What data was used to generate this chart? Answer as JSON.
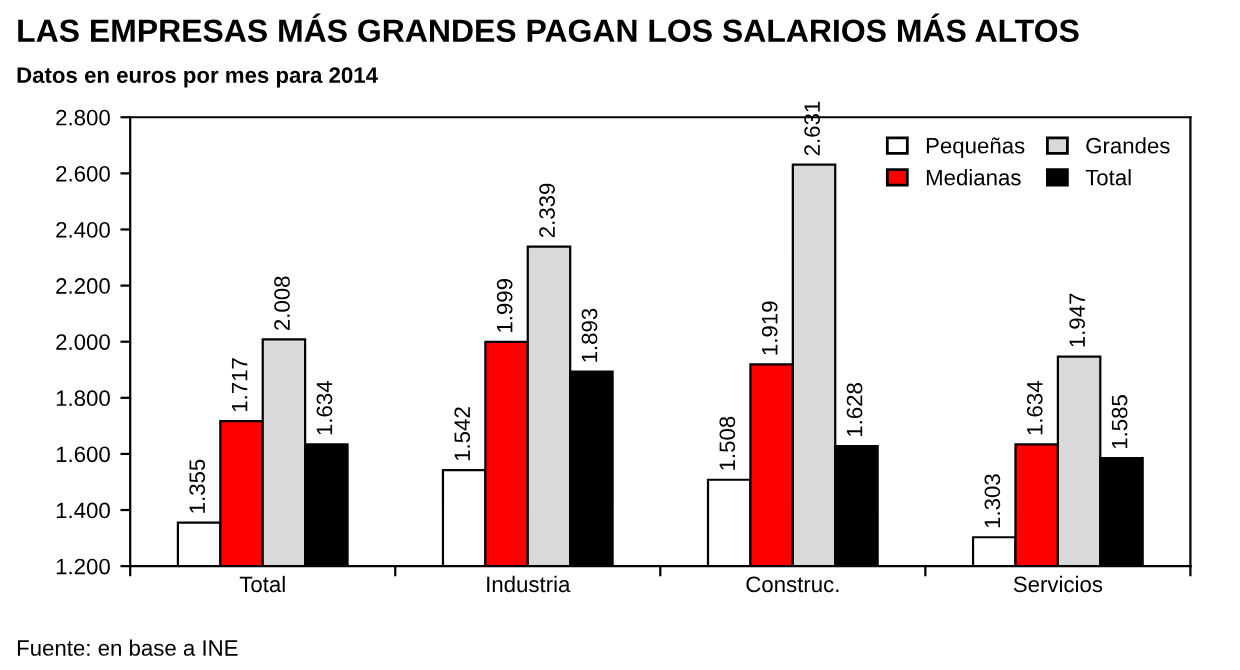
{
  "chart_data": {
    "type": "bar",
    "title": "LAS EMPRESAS MÁS GRANDES PAGAN LOS SALARIOS MÁS ALTOS",
    "subtitle": "Datos en euros por mes para 2014",
    "categories": [
      "Total",
      "Industria",
      "Construc.",
      "Servicios"
    ],
    "series": [
      {
        "name": "Pequeñas",
        "color": "#ffffff",
        "values": [
          1355,
          1542,
          1508,
          1303
        ],
        "value_labels": [
          "1.355",
          "1.542",
          "1.508",
          "1.303"
        ]
      },
      {
        "name": "Medianas",
        "color": "#ff0000",
        "values": [
          1717,
          1999,
          1919,
          1634
        ],
        "value_labels": [
          "1.717",
          "1.999",
          "1.919",
          "1.634"
        ]
      },
      {
        "name": "Grandes",
        "color": "#d9d9d9",
        "values": [
          2008,
          2339,
          2631,
          1947
        ],
        "value_labels": [
          "2.008",
          "2.339",
          "2.631",
          "1.947"
        ]
      },
      {
        "name": "Total",
        "color": "#000000",
        "values": [
          1634,
          1893,
          1628,
          1585
        ],
        "value_labels": [
          "1.634",
          "1.893",
          "1.628",
          "1.585"
        ]
      }
    ],
    "ylim": [
      1200,
      2800
    ],
    "yticks": [
      {
        "value": 1200,
        "label": "1.200"
      },
      {
        "value": 1400,
        "label": "1.400"
      },
      {
        "value": 1600,
        "label": "1.600"
      },
      {
        "value": 1800,
        "label": "1.800"
      },
      {
        "value": 2000,
        "label": "2.000"
      },
      {
        "value": 2200,
        "label": "2.200"
      },
      {
        "value": 2400,
        "label": "2.400"
      },
      {
        "value": 2600,
        "label": "2.600"
      },
      {
        "value": 2800,
        "label": "2.800"
      }
    ],
    "legend": "top right",
    "grid": false,
    "annotations": [
      "Fuente: en base a INE"
    ]
  }
}
